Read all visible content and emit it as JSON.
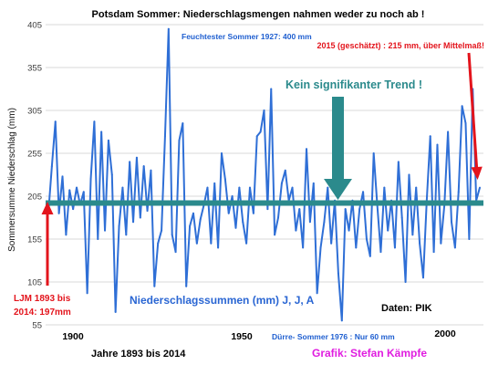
{
  "chart_data": {
    "type": "line",
    "title": "Potsdam Sommer: Niederschlagsmengen nahmen weder zu noch ab !",
    "ylabel": "Sommersumme  Niederschlag (mm)",
    "xlabel": "Jahre 1893 bis 2014",
    "x_tick_labels": [
      "1900",
      "1950",
      "2000"
    ],
    "y_ticks": [
      55,
      105,
      155,
      205,
      255,
      305,
      355,
      405
    ],
    "ylim": [
      55,
      405
    ],
    "xlim": [
      1893,
      2015
    ],
    "grid": true,
    "series": [
      {
        "name": "Niederschlagssummen (mm) J, J, A",
        "x": [
          1893,
          1894,
          1895,
          1896,
          1897,
          1898,
          1899,
          1900,
          1901,
          1902,
          1903,
          1904,
          1905,
          1906,
          1907,
          1908,
          1909,
          1910,
          1911,
          1912,
          1913,
          1914,
          1915,
          1916,
          1917,
          1918,
          1919,
          1920,
          1921,
          1922,
          1923,
          1924,
          1925,
          1926,
          1927,
          1928,
          1929,
          1930,
          1931,
          1932,
          1933,
          1934,
          1935,
          1936,
          1937,
          1938,
          1939,
          1940,
          1941,
          1942,
          1943,
          1944,
          1945,
          1946,
          1947,
          1948,
          1949,
          1950,
          1951,
          1952,
          1953,
          1954,
          1955,
          1956,
          1957,
          1958,
          1959,
          1960,
          1961,
          1962,
          1963,
          1964,
          1965,
          1966,
          1967,
          1968,
          1969,
          1970,
          1971,
          1972,
          1973,
          1974,
          1975,
          1976,
          1977,
          1978,
          1979,
          1980,
          1981,
          1982,
          1983,
          1984,
          1985,
          1986,
          1987,
          1988,
          1989,
          1990,
          1991,
          1992,
          1993,
          1994,
          1995,
          1996,
          1997,
          1998,
          1999,
          2000,
          2001,
          2002,
          2003,
          2004,
          2005,
          2006,
          2007,
          2008,
          2009,
          2010,
          2011,
          2012,
          2013,
          2014,
          2015
        ],
        "y": [
          185,
          240,
          292,
          185,
          228,
          160,
          212,
          190,
          215,
          195,
          210,
          92,
          225,
          292,
          155,
          280,
          165,
          270,
          230,
          70,
          170,
          215,
          160,
          245,
          175,
          250,
          180,
          240,
          188,
          235,
          100,
          150,
          165,
          275,
          400,
          160,
          140,
          270,
          290,
          100,
          170,
          185,
          150,
          178,
          195,
          215,
          150,
          220,
          145,
          255,
          225,
          185,
          205,
          168,
          215,
          175,
          150,
          215,
          185,
          275,
          280,
          305,
          190,
          330,
          160,
          180,
          220,
          235,
          200,
          215,
          165,
          190,
          145,
          260,
          175,
          220,
          92,
          145,
          175,
          215,
          150,
          200,
          115,
          60,
          190,
          165,
          200,
          145,
          190,
          210,
          155,
          135,
          255,
          195,
          140,
          215,
          165,
          200,
          145,
          245,
          180,
          105,
          230,
          160,
          215,
          150,
          110,
          200,
          275,
          140,
          265,
          150,
          195,
          280,
          175,
          145,
          210,
          310,
          290,
          155,
          330,
          200,
          215
        ]
      }
    ],
    "mean_line": {
      "value": 197
    },
    "annotations": {
      "wettest": "Feuchtester Sommer 1927: 400 mm",
      "estimate_2015": "2015 (geschätzt) : 215 mm, über Mittelmaß!",
      "no_trend": "Kein signifikanter Trend !",
      "mean_label": [
        "LJM 1893 bis",
        "2014: 197mm"
      ],
      "drought": "Dürre- Sommer 1976 : Nur 60 mm",
      "source": "Daten: PIK",
      "credit": "Grafik: Stefan Kämpfe"
    },
    "colors": {
      "series": "#2f6fd6",
      "mean_line": "#2b8a8c",
      "teal": "#2b8a8c",
      "red": "#e3141c",
      "blue_text": "#1f5fd0",
      "series_text": "#2a66d3",
      "credit": "#e01de0",
      "grid": "#d9d9d9"
    }
  }
}
